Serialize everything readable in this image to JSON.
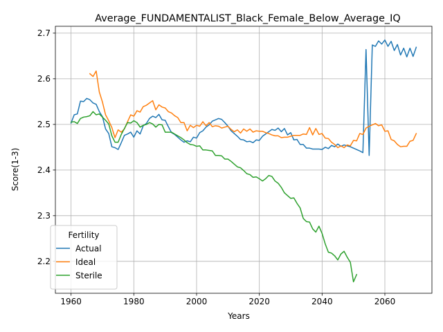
{
  "chart_data": {
    "type": "line",
    "title": "Average_FUNDAMENTALIST_Black_Female_Below_Average_IQ",
    "xlabel": "Years",
    "ylabel": "Score(1-3)",
    "xlim": [
      1955,
      2075
    ],
    "ylim": [
      2.13,
      2.715
    ],
    "xticks": [
      1960,
      1980,
      2000,
      2020,
      2040,
      2060
    ],
    "yticks": [
      2.2,
      2.3,
      2.4,
      2.5,
      2.6,
      2.7
    ],
    "grid": true,
    "legend": {
      "title": "Fertility",
      "position": "lower-left"
    },
    "series": [
      {
        "name": "Actual",
        "color": "#1f77b4",
        "x": [
          1960,
          1961,
          1962,
          1963,
          1964,
          1965,
          1966,
          1967,
          1968,
          1969,
          1970,
          1971,
          1972,
          1973,
          1974,
          1975,
          1976,
          1977,
          1978,
          1979,
          1980,
          1981,
          1982,
          1983,
          1984,
          1985,
          1986,
          1987,
          1988,
          1989,
          1990,
          1991,
          1992,
          1993,
          1994,
          1995,
          1996,
          1997,
          1998,
          1999,
          2000,
          2001,
          2002,
          2003,
          2004,
          2005,
          2006,
          2007,
          2008,
          2009,
          2010,
          2011,
          2012,
          2013,
          2014,
          2015,
          2016,
          2017,
          2018,
          2019,
          2020,
          2021,
          2022,
          2023,
          2024,
          2025,
          2026,
          2027,
          2028,
          2029,
          2030,
          2031,
          2032,
          2033,
          2034,
          2035,
          2036,
          2037,
          2038,
          2039,
          2040,
          2041,
          2042,
          2043,
          2044,
          2045,
          2046,
          2047,
          2048,
          2049,
          2050,
          2051,
          2052,
          2053,
          2054,
          2055,
          2056,
          2057,
          2058,
          2059,
          2060,
          2061,
          2062,
          2063,
          2064,
          2065,
          2066,
          2067,
          2068,
          2069,
          2070
        ],
        "values": [
          2.503,
          2.521,
          2.523,
          2.551,
          2.55,
          2.557,
          2.554,
          2.547,
          2.544,
          2.528,
          2.517,
          2.49,
          2.48,
          2.451,
          2.449,
          2.445,
          2.46,
          2.476,
          2.479,
          2.483,
          2.472,
          2.486,
          2.479,
          2.497,
          2.502,
          2.513,
          2.518,
          2.515,
          2.522,
          2.51,
          2.509,
          2.495,
          2.482,
          2.478,
          2.472,
          2.466,
          2.461,
          2.464,
          2.462,
          2.472,
          2.47,
          2.482,
          2.486,
          2.494,
          2.499,
          2.507,
          2.51,
          2.513,
          2.511,
          2.504,
          2.496,
          2.486,
          2.48,
          2.474,
          2.467,
          2.466,
          2.462,
          2.463,
          2.46,
          2.466,
          2.465,
          2.474,
          2.479,
          2.484,
          2.489,
          2.487,
          2.492,
          2.484,
          2.491,
          2.477,
          2.482,
          2.466,
          2.467,
          2.456,
          2.456,
          2.448,
          2.448,
          2.446,
          2.446,
          2.446,
          2.445,
          2.45,
          2.447,
          2.454,
          2.451,
          2.457,
          2.452,
          2.455,
          2.453,
          2.451,
          2.448,
          2.445,
          2.442,
          2.438,
          2.664,
          2.432,
          2.674,
          2.671,
          2.683,
          2.676,
          2.685,
          2.671,
          2.682,
          2.662,
          2.675,
          2.652,
          2.667,
          2.648,
          2.667,
          2.649,
          2.669
        ]
      },
      {
        "name": "Ideal",
        "color": "#ff7f0e",
        "x": [
          1966,
          1967,
          1968,
          1969,
          1970,
          1971,
          1972,
          1973,
          1974,
          1975,
          1976,
          1977,
          1978,
          1979,
          1980,
          1981,
          1982,
          1983,
          1984,
          1985,
          1986,
          1987,
          1988,
          1989,
          1990,
          1991,
          1992,
          1993,
          1994,
          1995,
          1996,
          1997,
          1998,
          1999,
          2000,
          2001,
          2002,
          2003,
          2004,
          2005,
          2006,
          2007,
          2008,
          2009,
          2010,
          2011,
          2012,
          2013,
          2014,
          2015,
          2016,
          2017,
          2018,
          2019,
          2020,
          2021,
          2022,
          2023,
          2024,
          2025,
          2026,
          2027,
          2028,
          2029,
          2030,
          2031,
          2032,
          2033,
          2034,
          2035,
          2036,
          2037,
          2038,
          2039,
          2040,
          2041,
          2042,
          2043,
          2044,
          2045,
          2046,
          2047,
          2048,
          2049,
          2050,
          2051,
          2052,
          2053,
          2054,
          2055,
          2056,
          2057,
          2058,
          2059,
          2060,
          2061,
          2062,
          2063,
          2064,
          2065,
          2066,
          2067,
          2068,
          2069,
          2070
        ],
        "values": [
          2.611,
          2.605,
          2.617,
          2.571,
          2.549,
          2.521,
          2.508,
          2.493,
          2.471,
          2.488,
          2.483,
          2.49,
          2.506,
          2.521,
          2.518,
          2.53,
          2.527,
          2.539,
          2.542,
          2.547,
          2.552,
          2.532,
          2.543,
          2.538,
          2.536,
          2.528,
          2.525,
          2.519,
          2.515,
          2.504,
          2.504,
          2.486,
          2.498,
          2.493,
          2.498,
          2.496,
          2.506,
          2.497,
          2.504,
          2.495,
          2.497,
          2.496,
          2.492,
          2.494,
          2.496,
          2.489,
          2.484,
          2.488,
          2.481,
          2.49,
          2.485,
          2.49,
          2.483,
          2.486,
          2.485,
          2.485,
          2.482,
          2.48,
          2.477,
          2.475,
          2.475,
          2.471,
          2.472,
          2.472,
          2.474,
          2.476,
          2.476,
          2.476,
          2.479,
          2.478,
          2.493,
          2.477,
          2.491,
          2.478,
          2.48,
          2.47,
          2.469,
          2.461,
          2.456,
          2.449,
          2.453,
          2.449,
          2.455,
          2.453,
          2.465,
          2.464,
          2.48,
          2.478,
          2.492,
          2.496,
          2.499,
          2.502,
          2.497,
          2.499,
          2.485,
          2.486,
          2.467,
          2.464,
          2.456,
          2.451,
          2.452,
          2.452,
          2.463,
          2.465,
          2.48
        ]
      },
      {
        "name": "Sterile",
        "color": "#2ca02c",
        "x": [
          1960,
          1961,
          1962,
          1963,
          1964,
          1965,
          1966,
          1967,
          1968,
          1969,
          1970,
          1971,
          1972,
          1973,
          1974,
          1975,
          1976,
          1977,
          1978,
          1979,
          1980,
          1981,
          1982,
          1983,
          1984,
          1985,
          1986,
          1987,
          1988,
          1989,
          1990,
          1991,
          1992,
          1993,
          1994,
          1995,
          1996,
          1997,
          1998,
          1999,
          2000,
          2001,
          2002,
          2003,
          2004,
          2005,
          2006,
          2007,
          2008,
          2009,
          2010,
          2011,
          2012,
          2013,
          2014,
          2015,
          2016,
          2017,
          2018,
          2019,
          2020,
          2021,
          2022,
          2023,
          2024,
          2025,
          2026,
          2027,
          2028,
          2029,
          2030,
          2031,
          2032,
          2033,
          2034,
          2035,
          2036,
          2037,
          2038,
          2039,
          2040,
          2041,
          2042,
          2043,
          2044,
          2045,
          2046,
          2047,
          2048,
          2049,
          2050,
          2051
        ],
        "values": [
          2.505,
          2.506,
          2.502,
          2.513,
          2.516,
          2.517,
          2.519,
          2.528,
          2.521,
          2.523,
          2.516,
          2.509,
          2.501,
          2.475,
          2.461,
          2.461,
          2.478,
          2.491,
          2.504,
          2.503,
          2.508,
          2.504,
          2.494,
          2.498,
          2.5,
          2.504,
          2.501,
          2.494,
          2.5,
          2.499,
          2.483,
          2.483,
          2.483,
          2.479,
          2.475,
          2.471,
          2.466,
          2.46,
          2.456,
          2.455,
          2.452,
          2.453,
          2.444,
          2.444,
          2.443,
          2.442,
          2.432,
          2.432,
          2.431,
          2.424,
          2.424,
          2.419,
          2.413,
          2.407,
          2.405,
          2.399,
          2.392,
          2.39,
          2.384,
          2.385,
          2.381,
          2.376,
          2.381,
          2.388,
          2.386,
          2.376,
          2.371,
          2.362,
          2.35,
          2.344,
          2.338,
          2.339,
          2.327,
          2.317,
          2.294,
          2.287,
          2.286,
          2.271,
          2.264,
          2.277,
          2.261,
          2.238,
          2.22,
          2.218,
          2.212,
          2.203,
          2.216,
          2.222,
          2.209,
          2.198,
          2.155,
          2.171
        ]
      }
    ]
  }
}
